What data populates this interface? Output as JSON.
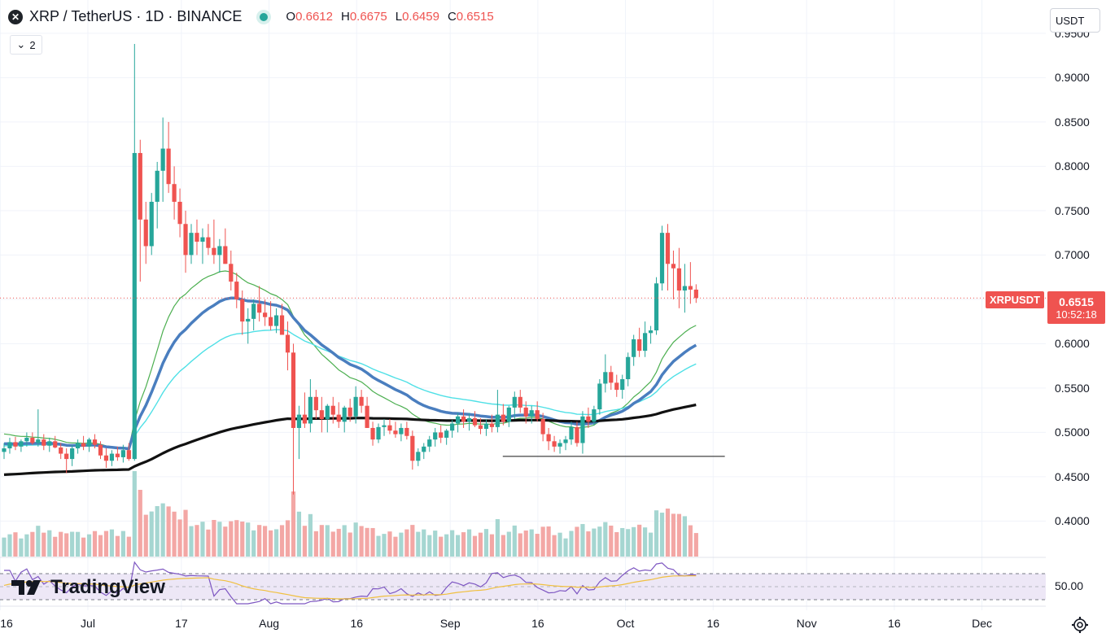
{
  "header": {
    "symbol_icon": "x-logo-icon",
    "title": "XRP / TetherUS · 1D · BINANCE",
    "ohlc": [
      {
        "key": "O",
        "value": "0.6612"
      },
      {
        "key": "H",
        "value": "0.6675"
      },
      {
        "key": "L",
        "value": "0.6459"
      },
      {
        "key": "C",
        "value": "0.6515"
      }
    ],
    "indicator_toggle": "2"
  },
  "currency_button": "USDT",
  "last_price": {
    "symbol": "XRPUSDT",
    "price": "0.6515",
    "countdown": "10:52:18"
  },
  "logo_text": "TradingView",
  "price_axis": {
    "labels": [
      {
        "text": "0.9500",
        "value": 0.95
      },
      {
        "text": "0.9000",
        "value": 0.9
      },
      {
        "text": "0.8500",
        "value": 0.85
      },
      {
        "text": "0.8000",
        "value": 0.8
      },
      {
        "text": "0.7500",
        "value": 0.75
      },
      {
        "text": "0.7000",
        "value": 0.7
      },
      {
        "text": "0.6000",
        "value": 0.6
      },
      {
        "text": "0.5500",
        "value": 0.55
      },
      {
        "text": "0.5000",
        "value": 0.5
      },
      {
        "text": "0.4500",
        "value": 0.45
      },
      {
        "text": "0.4000",
        "value": 0.4
      }
    ]
  },
  "rsi": {
    "label": "50.00"
  },
  "colors": {
    "up": "#26a69a",
    "down": "#ef5350",
    "up_vol": "#a5d6d1",
    "down_vol": "#f3a7a5",
    "ma_green": "#4caf50",
    "ma_blue": "#4a7ebf",
    "ma_cyan": "#4fe0e6",
    "ma_black": "#111111",
    "rsi_line": "#7e57c2",
    "rsi_signal": "#f0c040",
    "rsi_band": "#ede7f6"
  },
  "chart_data": {
    "type": "candlestick",
    "title": "XRP / TetherUS · 1D · BINANCE",
    "ylim": [
      0.36,
      0.96
    ],
    "x_ticks": [
      {
        "label": "16",
        "day": -15
      },
      {
        "label": "Jul",
        "day": 0
      },
      {
        "label": "17",
        "day": 16
      },
      {
        "label": "Aug",
        "day": 31
      },
      {
        "label": "16",
        "day": 46
      },
      {
        "label": "Sep",
        "day": 62
      },
      {
        "label": "16",
        "day": 77
      },
      {
        "label": "Oct",
        "day": 92
      },
      {
        "label": "16",
        "day": 107
      },
      {
        "label": "Nov",
        "day": 123
      },
      {
        "label": "16",
        "day": 138
      },
      {
        "label": "Dec",
        "day": 153
      }
    ],
    "support_line": {
      "price": 0.473,
      "from_day": 71,
      "to_day": 109
    },
    "candles": [
      [
        0.478,
        0.488,
        0.47,
        0.482
      ],
      [
        0.482,
        0.494,
        0.476,
        0.489
      ],
      [
        0.489,
        0.495,
        0.48,
        0.484
      ],
      [
        0.484,
        0.492,
        0.478,
        0.49
      ],
      [
        0.49,
        0.5,
        0.484,
        0.494
      ],
      [
        0.494,
        0.5,
        0.486,
        0.488
      ],
      [
        0.488,
        0.526,
        0.484,
        0.492
      ],
      [
        0.492,
        0.498,
        0.48,
        0.485
      ],
      [
        0.485,
        0.494,
        0.478,
        0.49
      ],
      [
        0.49,
        0.496,
        0.482,
        0.483
      ],
      [
        0.483,
        0.488,
        0.47,
        0.476
      ],
      [
        0.476,
        0.482,
        0.454,
        0.47
      ],
      [
        0.47,
        0.486,
        0.462,
        0.482
      ],
      [
        0.482,
        0.492,
        0.476,
        0.488
      ],
      [
        0.488,
        0.496,
        0.48,
        0.484
      ],
      [
        0.484,
        0.494,
        0.478,
        0.492
      ],
      [
        0.492,
        0.498,
        0.482,
        0.486
      ],
      [
        0.486,
        0.49,
        0.47,
        0.474
      ],
      [
        0.474,
        0.482,
        0.46,
        0.468
      ],
      [
        0.468,
        0.48,
        0.462,
        0.476
      ],
      [
        0.476,
        0.484,
        0.468,
        0.472
      ],
      [
        0.472,
        0.486,
        0.466,
        0.48
      ],
      [
        0.48,
        0.488,
        0.468,
        0.47
      ],
      [
        0.47,
        0.938,
        0.468,
        0.815
      ],
      [
        0.815,
        0.83,
        0.67,
        0.74
      ],
      [
        0.74,
        0.76,
        0.69,
        0.71
      ],
      [
        0.71,
        0.77,
        0.7,
        0.76
      ],
      [
        0.76,
        0.805,
        0.73,
        0.795
      ],
      [
        0.795,
        0.855,
        0.76,
        0.82
      ],
      [
        0.82,
        0.85,
        0.77,
        0.78
      ],
      [
        0.78,
        0.8,
        0.74,
        0.76
      ],
      [
        0.76,
        0.775,
        0.72,
        0.735
      ],
      [
        0.735,
        0.75,
        0.68,
        0.7
      ],
      [
        0.7,
        0.735,
        0.69,
        0.725
      ],
      [
        0.725,
        0.74,
        0.7,
        0.715
      ],
      [
        0.715,
        0.73,
        0.69,
        0.72
      ],
      [
        0.72,
        0.735,
        0.7,
        0.708
      ],
      [
        0.708,
        0.74,
        0.69,
        0.7
      ],
      [
        0.7,
        0.718,
        0.68,
        0.71
      ],
      [
        0.71,
        0.73,
        0.69,
        0.69
      ],
      [
        0.69,
        0.705,
        0.66,
        0.67
      ],
      [
        0.67,
        0.68,
        0.64,
        0.65
      ],
      [
        0.65,
        0.66,
        0.61,
        0.625
      ],
      [
        0.625,
        0.64,
        0.6,
        0.628
      ],
      [
        0.628,
        0.65,
        0.615,
        0.645
      ],
      [
        0.645,
        0.665,
        0.625,
        0.635
      ],
      [
        0.635,
        0.65,
        0.62,
        0.63
      ],
      [
        0.63,
        0.648,
        0.615,
        0.62
      ],
      [
        0.62,
        0.64,
        0.612,
        0.632
      ],
      [
        0.632,
        0.645,
        0.615,
        0.61
      ],
      [
        0.61,
        0.625,
        0.57,
        0.59
      ],
      [
        0.59,
        0.6,
        0.43,
        0.505
      ],
      [
        0.505,
        0.53,
        0.47,
        0.52
      ],
      [
        0.52,
        0.545,
        0.505,
        0.51
      ],
      [
        0.51,
        0.56,
        0.5,
        0.54
      ],
      [
        0.54,
        0.548,
        0.515,
        0.525
      ],
      [
        0.525,
        0.54,
        0.5,
        0.515
      ],
      [
        0.515,
        0.532,
        0.5,
        0.53
      ],
      [
        0.53,
        0.54,
        0.51,
        0.52
      ],
      [
        0.52,
        0.534,
        0.505,
        0.512
      ],
      [
        0.512,
        0.53,
        0.5,
        0.528
      ],
      [
        0.528,
        0.538,
        0.512,
        0.518
      ],
      [
        0.518,
        0.552,
        0.51,
        0.54
      ],
      [
        0.54,
        0.548,
        0.522,
        0.53
      ],
      [
        0.53,
        0.54,
        0.505,
        0.505
      ],
      [
        0.505,
        0.512,
        0.485,
        0.492
      ],
      [
        0.492,
        0.51,
        0.488,
        0.506
      ],
      [
        0.506,
        0.515,
        0.496,
        0.508
      ],
      [
        0.508,
        0.515,
        0.498,
        0.502
      ],
      [
        0.502,
        0.512,
        0.494,
        0.498
      ],
      [
        0.498,
        0.51,
        0.49,
        0.505
      ],
      [
        0.505,
        0.512,
        0.492,
        0.496
      ],
      [
        0.496,
        0.502,
        0.458,
        0.468
      ],
      [
        0.468,
        0.482,
        0.462,
        0.478
      ],
      [
        0.478,
        0.488,
        0.47,
        0.484
      ],
      [
        0.484,
        0.496,
        0.478,
        0.492
      ],
      [
        0.492,
        0.505,
        0.484,
        0.5
      ],
      [
        0.5,
        0.508,
        0.488,
        0.494
      ],
      [
        0.494,
        0.504,
        0.486,
        0.502
      ],
      [
        0.502,
        0.514,
        0.494,
        0.51
      ],
      [
        0.51,
        0.522,
        0.5,
        0.518
      ],
      [
        0.518,
        0.526,
        0.505,
        0.512
      ],
      [
        0.512,
        0.522,
        0.502,
        0.516
      ],
      [
        0.516,
        0.524,
        0.506,
        0.508
      ],
      [
        0.508,
        0.516,
        0.498,
        0.504
      ],
      [
        0.504,
        0.515,
        0.496,
        0.51
      ],
      [
        0.51,
        0.52,
        0.5,
        0.506
      ],
      [
        0.506,
        0.548,
        0.5,
        0.52
      ],
      [
        0.52,
        0.532,
        0.508,
        0.512
      ],
      [
        0.512,
        0.53,
        0.506,
        0.528
      ],
      [
        0.528,
        0.546,
        0.515,
        0.54
      ],
      [
        0.54,
        0.548,
        0.522,
        0.528
      ],
      [
        0.528,
        0.535,
        0.51,
        0.518
      ],
      [
        0.518,
        0.53,
        0.51,
        0.525
      ],
      [
        0.525,
        0.535,
        0.512,
        0.515
      ],
      [
        0.515,
        0.522,
        0.49,
        0.498
      ],
      [
        0.498,
        0.505,
        0.48,
        0.49
      ],
      [
        0.49,
        0.496,
        0.478,
        0.484
      ],
      [
        0.484,
        0.492,
        0.476,
        0.488
      ],
      [
        0.488,
        0.496,
        0.48,
        0.492
      ],
      [
        0.492,
        0.512,
        0.486,
        0.506
      ],
      [
        0.506,
        0.512,
        0.484,
        0.488
      ],
      [
        0.488,
        0.524,
        0.476,
        0.518
      ],
      [
        0.518,
        0.528,
        0.505,
        0.512
      ],
      [
        0.512,
        0.53,
        0.508,
        0.526
      ],
      [
        0.526,
        0.56,
        0.52,
        0.555
      ],
      [
        0.555,
        0.588,
        0.545,
        0.568
      ],
      [
        0.568,
        0.575,
        0.548,
        0.556
      ],
      [
        0.556,
        0.565,
        0.54,
        0.548
      ],
      [
        0.548,
        0.565,
        0.538,
        0.56
      ],
      [
        0.56,
        0.59,
        0.552,
        0.585
      ],
      [
        0.585,
        0.61,
        0.575,
        0.605
      ],
      [
        0.605,
        0.618,
        0.585,
        0.592
      ],
      [
        0.592,
        0.625,
        0.585,
        0.612
      ],
      [
        0.612,
        0.62,
        0.6,
        0.615
      ],
      [
        0.615,
        0.675,
        0.61,
        0.668
      ],
      [
        0.668,
        0.733,
        0.66,
        0.725
      ],
      [
        0.725,
        0.735,
        0.66,
        0.69
      ],
      [
        0.69,
        0.705,
        0.65,
        0.685
      ],
      [
        0.685,
        0.708,
        0.64,
        0.66
      ],
      [
        0.66,
        0.69,
        0.635,
        0.665
      ],
      [
        0.665,
        0.692,
        0.645,
        0.661
      ],
      [
        0.661,
        0.667,
        0.646,
        0.6515
      ]
    ]
  }
}
